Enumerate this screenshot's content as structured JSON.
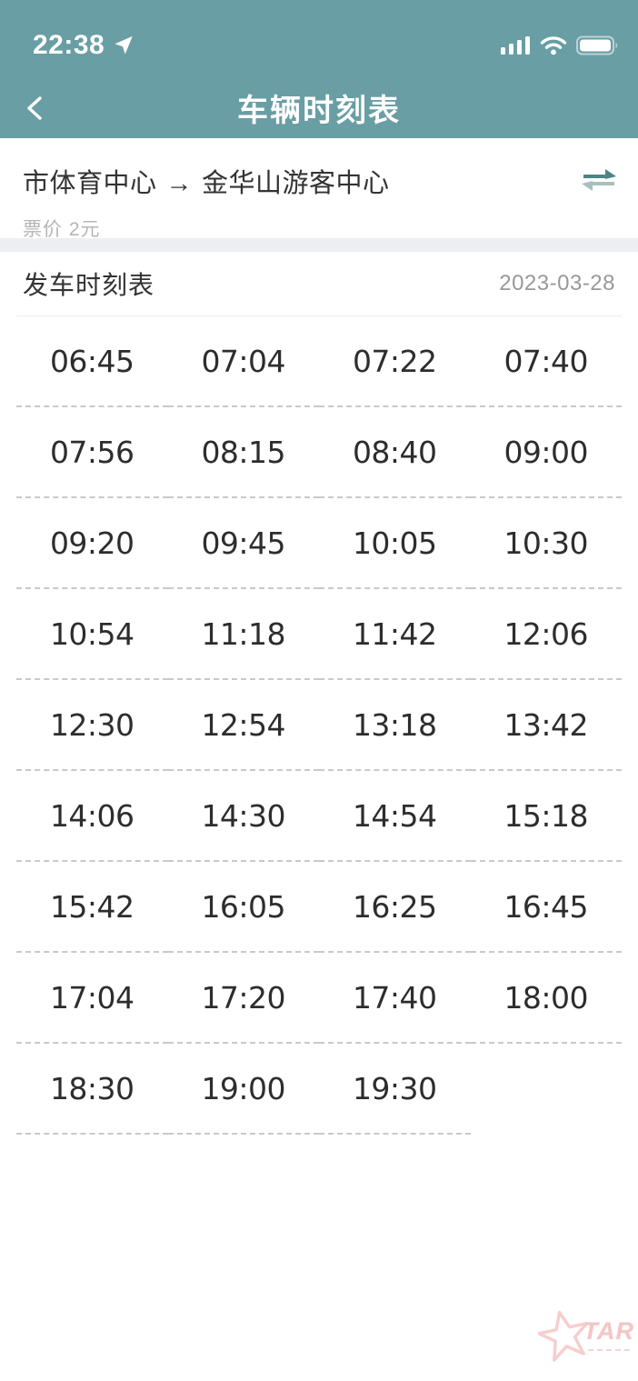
{
  "status_bar": {
    "time": "22:38"
  },
  "nav": {
    "title": "车辆时刻表"
  },
  "route": {
    "from": "市体育中心",
    "arrow": "→",
    "to": "金华山游客中心",
    "price": "票价 2元"
  },
  "schedule": {
    "title": "发车时刻表",
    "date": "2023-03-28",
    "rows": [
      [
        "06:45",
        "07:04",
        "07:22",
        "07:40"
      ],
      [
        "07:56",
        "08:15",
        "08:40",
        "09:00"
      ],
      [
        "09:20",
        "09:45",
        "10:05",
        "10:30"
      ],
      [
        "10:54",
        "11:18",
        "11:42",
        "12:06"
      ],
      [
        "12:30",
        "12:54",
        "13:18",
        "13:42"
      ],
      [
        "14:06",
        "14:30",
        "14:54",
        "15:18"
      ],
      [
        "15:42",
        "16:05",
        "16:25",
        "16:45"
      ],
      [
        "17:04",
        "17:20",
        "17:40",
        "18:00"
      ],
      [
        "18:30",
        "19:00",
        "19:30"
      ]
    ]
  },
  "watermark": {
    "text": "TAR"
  },
  "colors": {
    "header_teal": "#689ea4",
    "swap_arrow_dark": "#4e8486",
    "swap_arrow_light": "#a9bfc0",
    "time_text": "#2d2d2d",
    "dash_line": "#c9c9c9",
    "muted_gray": "#999999",
    "price_gray": "#b5b5b5",
    "watermark_pink": "#efadad"
  }
}
